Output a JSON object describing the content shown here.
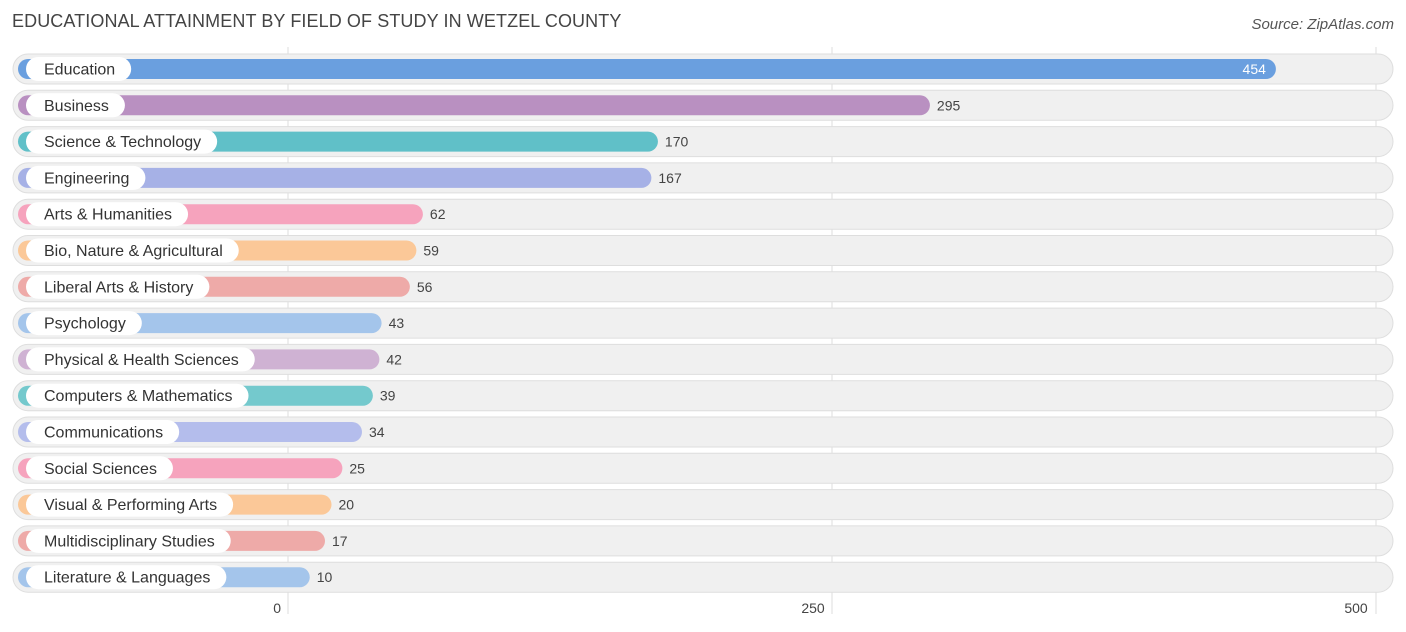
{
  "chart_data": {
    "type": "bar",
    "orientation": "horizontal",
    "title": "EDUCATIONAL ATTAINMENT BY FIELD OF STUDY IN WETZEL COUNTY",
    "source": "Source: ZipAtlas.com",
    "xlabel": "",
    "ylabel": "",
    "xlim": [
      0,
      500
    ],
    "ticks": [
      0,
      250,
      500
    ],
    "tick_labels": [
      "0",
      "250",
      "500"
    ],
    "grid": true,
    "categories": [
      "Education",
      "Business",
      "Science & Technology",
      "Engineering",
      "Arts & Humanities",
      "Bio, Nature & Agricultural",
      "Liberal Arts & History",
      "Psychology",
      "Physical & Health Sciences",
      "Computers & Mathematics",
      "Communications",
      "Social Sciences",
      "Visual & Performing Arts",
      "Multidisciplinary Studies",
      "Literature & Languages"
    ],
    "values": [
      454,
      295,
      170,
      167,
      62,
      59,
      56,
      43,
      42,
      39,
      34,
      25,
      20,
      17,
      10
    ],
    "value_labels": [
      "454",
      "295",
      "170",
      "167",
      "62",
      "59",
      "56",
      "43",
      "42",
      "39",
      "34",
      "25",
      "20",
      "17",
      "10"
    ],
    "colors": [
      "#6a9fdf",
      "#b990c1",
      "#60c0c8",
      "#a6b1e6",
      "#f6a3bd",
      "#fbc898",
      "#eeaaa8",
      "#a4c5eb",
      "#cfb2d3",
      "#74c9cd",
      "#b4bdec",
      "#f6a3bd",
      "#fbc898",
      "#eeaaa8",
      "#a4c5eb"
    ]
  }
}
